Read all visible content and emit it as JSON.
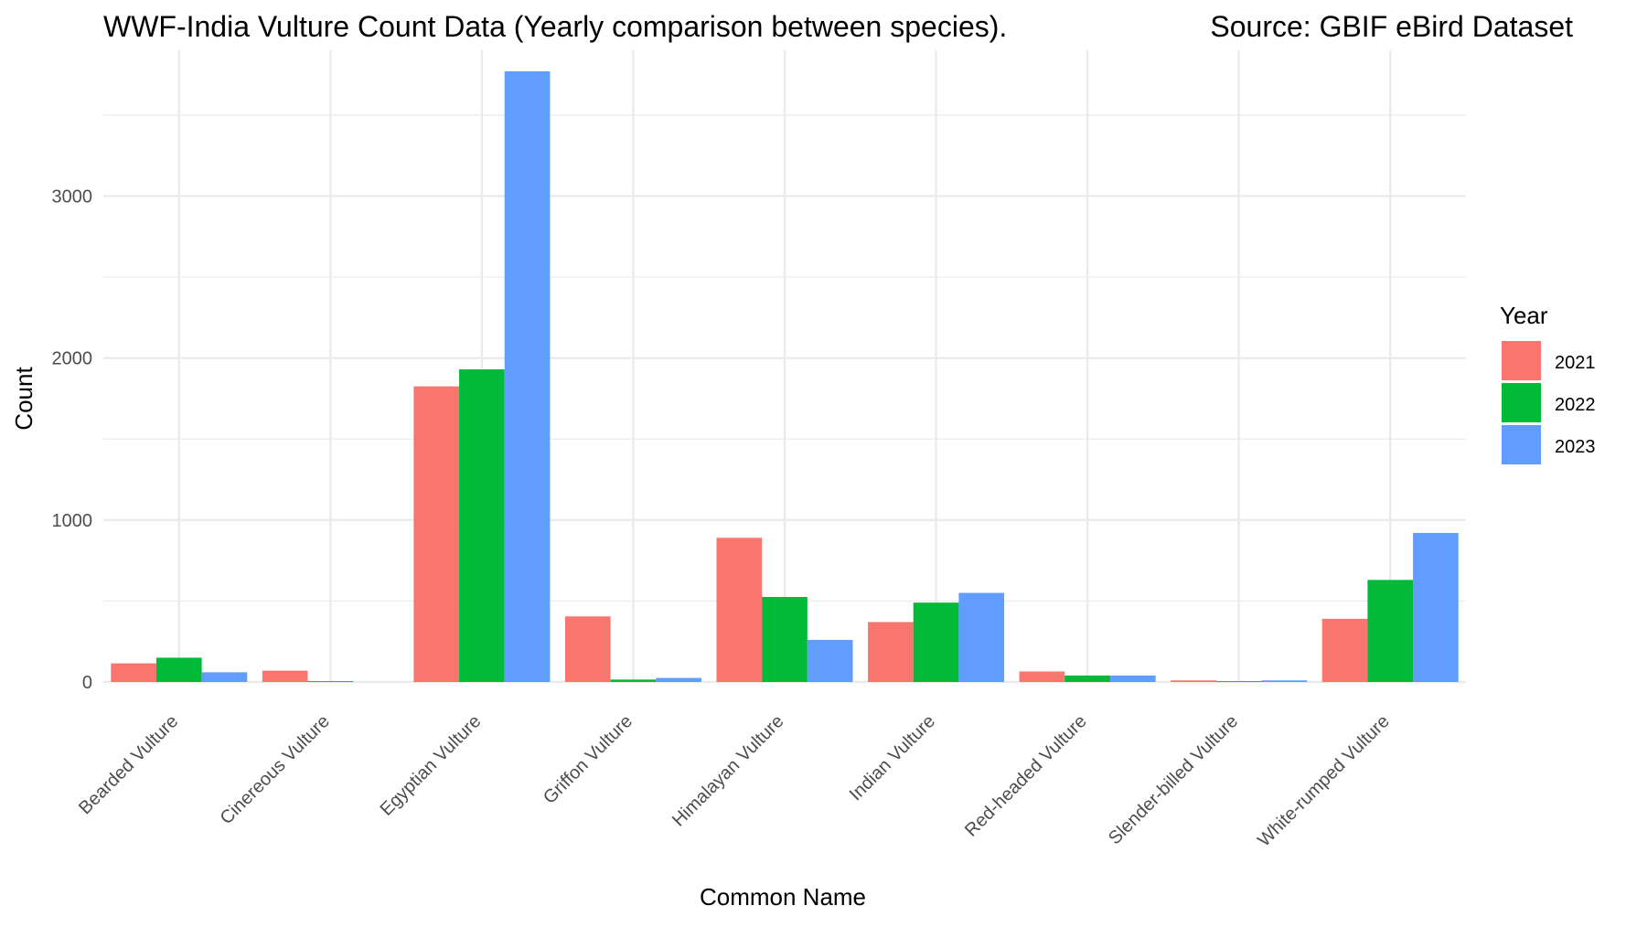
{
  "chart_data": {
    "type": "bar",
    "title": "WWF-India Vulture Count Data (Yearly comparison between species).",
    "subtitle": "Source: GBIF eBird Dataset",
    "xlabel": "Common Name",
    "ylabel": "Count",
    "ylim": [
      0,
      3900
    ],
    "yticks": [
      0,
      1000,
      2000,
      3000
    ],
    "ytick_labels": [
      "0",
      "1000",
      "2000",
      "3000"
    ],
    "grid": true,
    "legend": {
      "title": "Year",
      "position": "right"
    },
    "categories": [
      "Bearded Vulture",
      "Cinereous Vulture",
      "Egyptian Vulture",
      "Griffon Vulture",
      "Himalayan Vulture",
      "Indian Vulture",
      "Red-headed Vulture",
      "Slender-billed Vulture",
      "White-rumped Vulture"
    ],
    "series": [
      {
        "name": "2021",
        "color": "#F8766D",
        "values": [
          115,
          70,
          1825,
          405,
          890,
          370,
          65,
          10,
          390
        ]
      },
      {
        "name": "2022",
        "color": "#00BA38",
        "values": [
          150,
          5,
          1930,
          15,
          525,
          490,
          40,
          5,
          630
        ]
      },
      {
        "name": "2023",
        "color": "#619CFF",
        "values": [
          60,
          null,
          3770,
          25,
          260,
          550,
          40,
          10,
          920
        ]
      }
    ]
  }
}
